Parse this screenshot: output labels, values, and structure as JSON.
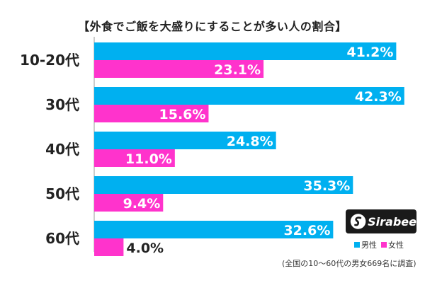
{
  "chart_data": {
    "type": "bar",
    "orientation": "horizontal",
    "title": "【外食でご飯を大盛りにすることが多い人の割合】",
    "categories": [
      "10-20代",
      "30代",
      "40代",
      "50代",
      "60代"
    ],
    "series": [
      {
        "name": "男性",
        "color": "#00B0F0",
        "values": [
          41.2,
          42.3,
          24.8,
          35.3,
          32.6
        ]
      },
      {
        "name": "女性",
        "color": "#FF33CC",
        "values": [
          23.1,
          15.6,
          11.0,
          9.4,
          4.0
        ]
      }
    ],
    "value_labels": [
      [
        "41.2%",
        "42.3%",
        "24.8%",
        "35.3%",
        "32.6%"
      ],
      [
        "23.1%",
        "15.6%",
        "11.0%",
        "9.4%",
        "4.0%"
      ]
    ],
    "xlim": [
      0,
      43
    ],
    "grid": false,
    "legend_position": "bottom-right"
  },
  "logo": {
    "text": "Sirabee"
  },
  "legend": {
    "male": "男性",
    "female": "女性"
  },
  "note": "(全国の10～60代の男女669名に調査)"
}
